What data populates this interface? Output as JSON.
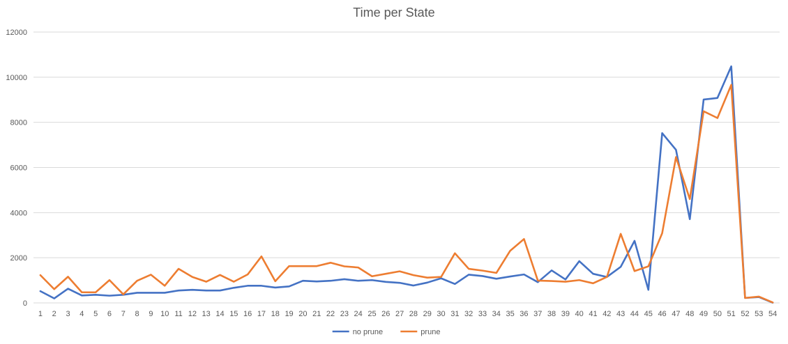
{
  "chart_data": {
    "type": "line",
    "title": "Time per State",
    "xlabel": "",
    "ylabel": "",
    "ylim": [
      0,
      12000
    ],
    "yticks": [
      0,
      2000,
      4000,
      6000,
      8000,
      10000,
      12000
    ],
    "grid": true,
    "legend_position": "bottom",
    "categories": [
      "1",
      "2",
      "3",
      "4",
      "5",
      "6",
      "7",
      "8",
      "9",
      "10",
      "11",
      "12",
      "13",
      "14",
      "15",
      "16",
      "17",
      "18",
      "19",
      "20",
      "21",
      "22",
      "23",
      "24",
      "25",
      "26",
      "27",
      "28",
      "29",
      "30",
      "31",
      "32",
      "33",
      "34",
      "35",
      "36",
      "37",
      "38",
      "39",
      "40",
      "41",
      "42",
      "43",
      "44",
      "45",
      "46",
      "47",
      "48",
      "49",
      "50",
      "51",
      "52",
      "53",
      "54"
    ],
    "series": [
      {
        "name": "no prune",
        "color": "#4472c4",
        "values": [
          520,
          200,
          630,
          330,
          360,
          320,
          360,
          450,
          450,
          450,
          550,
          580,
          550,
          550,
          670,
          760,
          760,
          680,
          730,
          980,
          950,
          980,
          1050,
          980,
          1010,
          930,
          890,
          770,
          900,
          1090,
          840,
          1250,
          1190,
          1070,
          1170,
          1260,
          920,
          1440,
          1040,
          1850,
          1290,
          1150,
          1600,
          2750,
          580,
          7520,
          6780,
          3710,
          9010,
          9080,
          10480,
          220,
          260,
          10
        ]
      },
      {
        "name": "prune",
        "color": "#ed7d31",
        "values": [
          1230,
          610,
          1160,
          470,
          470,
          1010,
          380,
          980,
          1250,
          760,
          1510,
          1150,
          940,
          1240,
          940,
          1260,
          2060,
          960,
          1630,
          1630,
          1630,
          1780,
          1620,
          1570,
          1180,
          1290,
          1400,
          1230,
          1120,
          1150,
          2200,
          1510,
          1430,
          1330,
          2310,
          2830,
          990,
          970,
          940,
          1010,
          870,
          1150,
          3060,
          1410,
          1620,
          3090,
          6460,
          4600,
          8490,
          8190,
          9660,
          220,
          280,
          20
        ]
      }
    ]
  }
}
